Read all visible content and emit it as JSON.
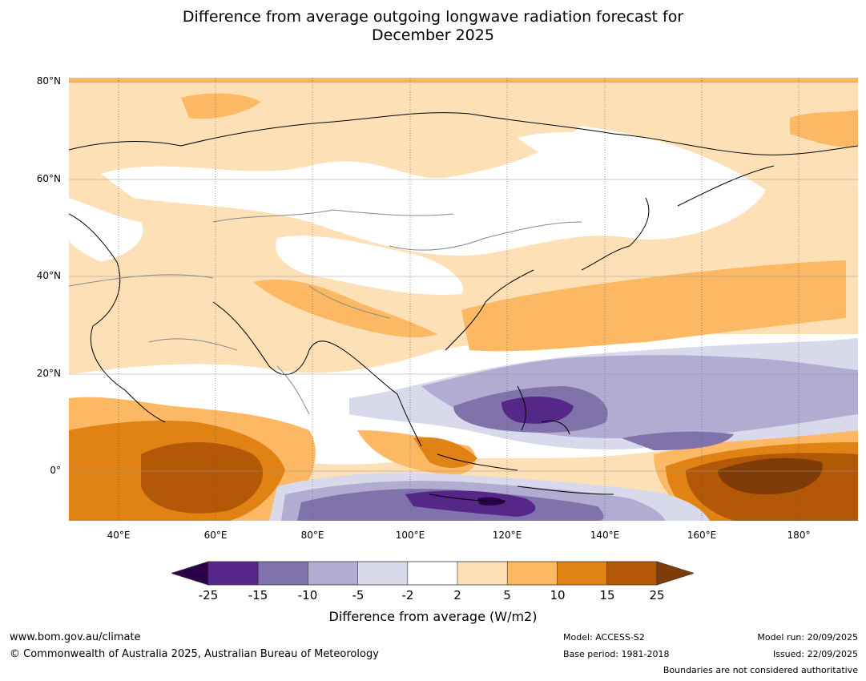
{
  "title_line1": "Difference from average outgoing longwave radiation forecast for",
  "title_line2": "December 2025",
  "map": {
    "region": "Asia and western Pacific",
    "lat_labels": [
      "80°N",
      "60°N",
      "40°N",
      "20°N",
      "0°"
    ],
    "lon_labels": [
      "40°E",
      "60°E",
      "80°E",
      "100°E",
      "120°E",
      "140°E",
      "160°E",
      "180°"
    ],
    "anomaly_areas": [
      {
        "name": "Southern Indian Ocean / East Africa",
        "class": "15 to 25"
      },
      {
        "name": "Central Pacific near equator",
        "class": ">25"
      },
      {
        "name": "Maritime Continent south",
        "class": "-25 to -15"
      },
      {
        "name": "Philippines / western Pacific",
        "class": "-25 to -15"
      },
      {
        "name": "Eastern China / Japan",
        "class": "5 to 10"
      },
      {
        "name": "Northern Eurasia",
        "class": "2 to 5"
      }
    ]
  },
  "colorbar": {
    "title": "Difference from average (W/m2)",
    "ticks": [
      "-25",
      "-15",
      "-10",
      "-5",
      "-2",
      "2",
      "5",
      "10",
      "15",
      "25"
    ],
    "colors": {
      "lt_-25": "#2d004b",
      "-25_-15": "#542788",
      "-15_-10": "#8073ac",
      "-10_-5": "#b2abd2",
      "-5_-2": "#d8daeb",
      "-2_2": "#ffffff",
      "2_5": "#fee0b6",
      "5_10": "#fdb863",
      "10_15": "#e08214",
      "15_25": "#b35806",
      "gt_25": "#7f3b08"
    }
  },
  "footer": {
    "website": "www.bom.gov.au/climate",
    "copyright": "© Commonwealth of Australia 2025, Australian Bureau of Meteorology",
    "model": "Model: ACCESS-S2",
    "base_period": "Base period: 1981-2018",
    "model_run": "Model run: 20/09/2025",
    "issued": "Issued: 22/09/2025",
    "disclaimer": "Boundaries are not considered authoritative"
  }
}
